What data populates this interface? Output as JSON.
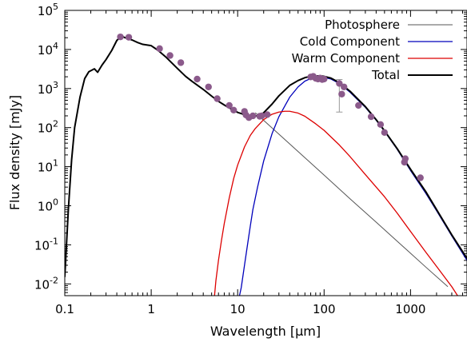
{
  "chart_data": {
    "type": "line",
    "title": "",
    "xlabel": "Wavelength [µm]",
    "ylabel": "Flux density [mJy]",
    "xscale": "log",
    "yscale": "log",
    "xlim": [
      0.1,
      4500
    ],
    "ylim": [
      0.005,
      100000
    ],
    "grid": false,
    "legend_position": "top-right",
    "x_ticks": [
      {
        "value": 0.1,
        "label": "0.1"
      },
      {
        "value": 1,
        "label": "1"
      },
      {
        "value": 10,
        "label": "10"
      },
      {
        "value": 100,
        "label": "100"
      },
      {
        "value": 1000,
        "label": "1000"
      }
    ],
    "y_ticks": [
      {
        "value": 0.01,
        "base": "10",
        "exp": "-2"
      },
      {
        "value": 0.1,
        "base": "10",
        "exp": "-1"
      },
      {
        "value": 1,
        "base": "10",
        "exp": "0"
      },
      {
        "value": 10,
        "base": "10",
        "exp": "1"
      },
      {
        "value": 100,
        "base": "10",
        "exp": "2"
      },
      {
        "value": 1000,
        "base": "10",
        "exp": "3"
      },
      {
        "value": 10000,
        "base": "10",
        "exp": "4"
      },
      {
        "value": 100000,
        "base": "10",
        "exp": "5"
      }
    ],
    "series": [
      {
        "name": "Photosphere",
        "color": "#555555",
        "width": 1,
        "x": [
          16,
          30,
          60,
          100,
          200,
          400,
          800,
          1500,
          2700
        ],
        "y": [
          240,
          68,
          17,
          6.1,
          1.5,
          0.38,
          0.095,
          0.027,
          0.0085
        ]
      },
      {
        "name": "Cold Component",
        "color": "#0000bb",
        "width": 1.3,
        "x": [
          10.5,
          11,
          12,
          13,
          14,
          15,
          17,
          20,
          25,
          30,
          40,
          50,
          60,
          70,
          80,
          90,
          100,
          120,
          150,
          200,
          300,
          400,
          500,
          700,
          1000,
          1500,
          2000,
          3000,
          4500
        ],
        "y": [
          0.005,
          0.008,
          0.03,
          0.1,
          0.3,
          0.8,
          3,
          14,
          70,
          190,
          600,
          1100,
          1550,
          1800,
          1920,
          1950,
          1920,
          1750,
          1350,
          800,
          330,
          155,
          80,
          28,
          8,
          2.1,
          0.75,
          0.17,
          0.04
        ]
      },
      {
        "name": "Warm Component",
        "color": "#dd0000",
        "width": 1.3,
        "x": [
          5.4,
          5.6,
          6,
          6.5,
          7,
          8,
          9,
          10,
          12,
          14,
          16,
          20,
          25,
          30,
          35,
          40,
          50,
          60,
          80,
          100,
          150,
          200,
          300,
          500,
          700,
          1000,
          1500,
          2000,
          3000,
          3500
        ],
        "y": [
          0.005,
          0.012,
          0.04,
          0.13,
          0.35,
          1.6,
          5,
          11,
          32,
          63,
          95,
          160,
          220,
          250,
          262,
          262,
          235,
          195,
          125,
          85,
          36,
          18,
          6.3,
          1.7,
          0.65,
          0.22,
          0.065,
          0.028,
          0.0085,
          0.005
        ]
      },
      {
        "name": "Total",
        "color": "#000000",
        "width": 2,
        "x": [
          0.1,
          0.11,
          0.12,
          0.13,
          0.15,
          0.17,
          0.19,
          0.22,
          0.24,
          0.27,
          0.3,
          0.35,
          0.4,
          0.45,
          0.5,
          0.6,
          0.7,
          0.8,
          1,
          1.2,
          1.5,
          2,
          2.5,
          3,
          4,
          5,
          6,
          7,
          8,
          10,
          12,
          15,
          18,
          20,
          25,
          30,
          40,
          50,
          60,
          70,
          80,
          90,
          100,
          120,
          150,
          200,
          300,
          400,
          500,
          700,
          1000,
          1500,
          2000,
          3000,
          4500
        ],
        "y": [
          0.015,
          0.8,
          15,
          100,
          600,
          1800,
          2700,
          3200,
          2600,
          4000,
          5500,
          9500,
          17000,
          22000,
          20000,
          17500,
          15000,
          13500,
          12500,
          9500,
          6200,
          3300,
          2050,
          1500,
          950,
          640,
          470,
          380,
          320,
          245,
          215,
          195,
          205,
          240,
          400,
          650,
          1200,
          1600,
          1900,
          2050,
          2100,
          2100,
          2050,
          1850,
          1420,
          850,
          345,
          160,
          83,
          29,
          8.6,
          2.3,
          0.8,
          0.18,
          0.045
        ]
      }
    ],
    "observations": {
      "color": "#8b5a8b",
      "x": [
        0.44,
        0.55,
        1.25,
        1.65,
        2.2,
        3.4,
        4.6,
        5.8,
        8,
        9,
        12,
        12.5,
        13.5,
        15,
        18,
        19,
        22,
        70,
        75,
        80,
        85,
        90,
        95,
        100,
        150,
        160,
        170,
        250,
        350,
        450,
        500,
        850,
        870,
        1300
      ],
      "y": [
        21000,
        20500,
        10500,
        7000,
        4600,
        1750,
        1100,
        550,
        370,
        280,
        260,
        210,
        180,
        200,
        195,
        200,
        215,
        1980,
        2050,
        1820,
        1750,
        1850,
        1700,
        1750,
        1350,
        720,
        1100,
        370,
        190,
        120,
        75,
        13,
        16,
        5.2
      ]
    },
    "error_bars": [
      {
        "x": 150,
        "y": 1300,
        "low": 250,
        "high": 1700
      }
    ]
  }
}
